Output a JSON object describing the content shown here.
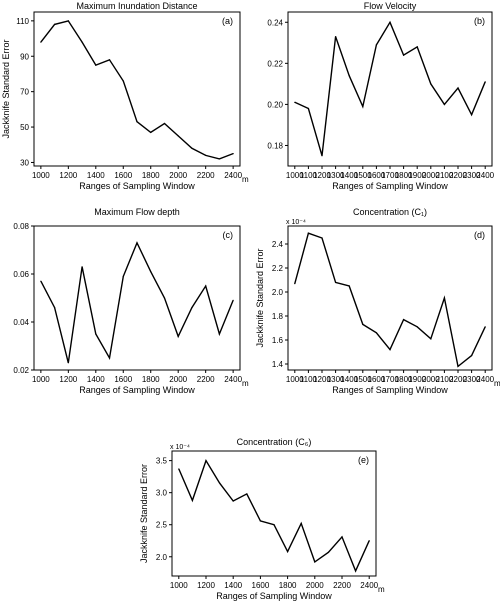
{
  "figure": {
    "x_axis_unit": "m",
    "panels": [
      {
        "title": "Maximum Inundation Distance",
        "panel_label": "(a)",
        "ylabel": "Jackknife Standard Error",
        "xlabel": "Ranges of Sampling Window",
        "multiplier_label": ""
      },
      {
        "title": "Flow Velocity",
        "panel_label": "(b)",
        "ylabel": "",
        "xlabel": "Ranges of Sampling Window",
        "multiplier_label": ""
      },
      {
        "title": "Maximum Flow depth",
        "panel_label": "(c)",
        "ylabel": "",
        "xlabel": "Ranges of Sampling Window",
        "multiplier_label": ""
      },
      {
        "title": "Concentration (C₁)",
        "panel_label": "(d)",
        "ylabel": "Jackknife Standard Error",
        "xlabel": "Ranges of Sampling Window",
        "multiplier_label": "x 10⁻⁴"
      },
      {
        "title": "Concentration (C₆)",
        "panel_label": "(e)",
        "ylabel": "Jackknife Standard Error",
        "xlabel": "Ranges of Sampling Window",
        "multiplier_label": "x 10⁻⁴"
      }
    ]
  },
  "chart_data": [
    {
      "type": "line",
      "title": "Maximum Inundation Distance",
      "xlabel": "Ranges of Sampling Window",
      "ylabel": "Jackknife Standard Error",
      "x_unit": "m",
      "x": [
        1000,
        1100,
        1200,
        1300,
        1400,
        1500,
        1600,
        1700,
        1800,
        1900,
        2000,
        2100,
        2200,
        2300,
        2400
      ],
      "y": [
        98,
        108,
        110,
        98,
        85,
        88,
        76,
        53,
        47,
        52,
        45,
        38,
        34,
        32,
        35
      ],
      "xlim": [
        950,
        2450
      ],
      "ylim": [
        28,
        115
      ],
      "xticks": [
        1000,
        1200,
        1400,
        1600,
        1800,
        2000,
        2200,
        2400
      ],
      "yticks": [
        30,
        50,
        70,
        90,
        110
      ],
      "grid": false
    },
    {
      "type": "line",
      "title": "Flow Velocity",
      "xlabel": "Ranges of Sampling Window",
      "ylabel": "",
      "x_unit": "",
      "x": [
        1000,
        1100,
        1200,
        1300,
        1400,
        1500,
        1600,
        1700,
        1800,
        1900,
        2000,
        2100,
        2200,
        2300,
        2400
      ],
      "y": [
        0.201,
        0.198,
        0.175,
        0.233,
        0.214,
        0.199,
        0.229,
        0.24,
        0.224,
        0.228,
        0.21,
        0.2,
        0.208,
        0.195,
        0.211
      ],
      "xlim": [
        950,
        2450
      ],
      "ylim": [
        0.17,
        0.245
      ],
      "xticks": [
        1000,
        1100,
        1200,
        1300,
        1400,
        1500,
        1600,
        1700,
        1800,
        1900,
        2000,
        2100,
        2200,
        2300,
        2400
      ],
      "yticks": [
        0.18,
        0.2,
        0.22,
        0.24
      ],
      "grid": false
    },
    {
      "type": "line",
      "title": "Maximum Flow depth",
      "xlabel": "Ranges of Sampling Window",
      "ylabel": "",
      "x_unit": "m",
      "x": [
        1000,
        1100,
        1200,
        1300,
        1400,
        1500,
        1600,
        1700,
        1800,
        1900,
        2000,
        2100,
        2200,
        2300,
        2400
      ],
      "y": [
        0.057,
        0.046,
        0.023,
        0.063,
        0.035,
        0.025,
        0.059,
        0.073,
        0.061,
        0.05,
        0.034,
        0.046,
        0.055,
        0.035,
        0.049
      ],
      "xlim": [
        950,
        2450
      ],
      "ylim": [
        0.02,
        0.08
      ],
      "xticks": [
        1000,
        1200,
        1400,
        1600,
        1800,
        2000,
        2200,
        2400
      ],
      "yticks": [
        0.02,
        0.04,
        0.06,
        0.08
      ],
      "grid": false
    },
    {
      "type": "line",
      "title": "Concentration (C₁)",
      "xlabel": "Ranges of Sampling Window",
      "ylabel": "Jackknife Standard Error",
      "x_unit": "m",
      "y_multiplier": "x 10⁻⁴",
      "x": [
        1000,
        1100,
        1200,
        1300,
        1400,
        1500,
        1600,
        1700,
        1800,
        1900,
        2000,
        2100,
        2200,
        2300,
        2400
      ],
      "y": [
        2.07,
        2.49,
        2.45,
        2.08,
        2.05,
        1.73,
        1.66,
        1.52,
        1.77,
        1.71,
        1.61,
        1.95,
        1.38,
        1.47,
        1.71
      ],
      "xlim": [
        950,
        2450
      ],
      "ylim": [
        1.35,
        2.55
      ],
      "xticks": [
        1000,
        1100,
        1200,
        1300,
        1400,
        1500,
        1600,
        1700,
        1800,
        1900,
        2000,
        2100,
        2200,
        2300,
        2400
      ],
      "yticks": [
        1.4,
        1.6,
        1.8,
        2.0,
        2.2,
        2.4
      ],
      "grid": false
    },
    {
      "type": "line",
      "title": "Concentration (C₆)",
      "xlabel": "Ranges of Sampling Window",
      "ylabel": "Jackknife Standard Error",
      "x_unit": "m",
      "y_multiplier": "x 10⁻⁴",
      "x": [
        1000,
        1100,
        1200,
        1300,
        1400,
        1500,
        1600,
        1700,
        1800,
        1900,
        2000,
        2100,
        2200,
        2300,
        2400
      ],
      "y": [
        3.37,
        2.88,
        3.5,
        3.15,
        2.87,
        2.98,
        2.56,
        2.5,
        2.08,
        2.52,
        1.92,
        2.07,
        2.31,
        1.78,
        2.25
      ],
      "xlim": [
        950,
        2450
      ],
      "ylim": [
        1.7,
        3.65
      ],
      "xticks": [
        1000,
        1200,
        1400,
        1600,
        1800,
        2000,
        2200,
        2400
      ],
      "yticks": [
        2.0,
        2.5,
        3.0,
        3.5
      ],
      "grid": false
    }
  ]
}
